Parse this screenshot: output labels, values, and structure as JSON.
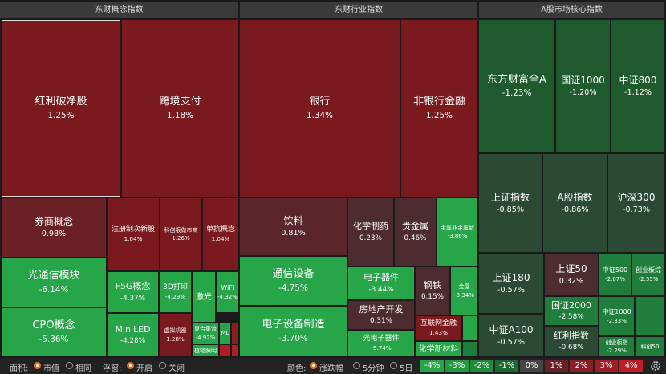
{
  "panels": [
    {
      "title": "东财概念指数",
      "tiles": [
        {
          "name": "红利破净股",
          "change": "1.25%"
        },
        {
          "name": "跨境支付",
          "change": "1.18%"
        },
        {
          "name": "券商概念",
          "change": "0.98%"
        },
        {
          "name": "注册制次新股",
          "change": "1.04%"
        },
        {
          "name": "科创板做市商",
          "change": "1.26%"
        },
        {
          "name": "单抗概念",
          "change": "1.04%"
        },
        {
          "name": "光通信模块",
          "change": "-6.14%"
        },
        {
          "name": "CPO概念",
          "change": "-5.36%"
        },
        {
          "name": "F5G概念",
          "change": "-4.37%"
        },
        {
          "name": "MiniLED",
          "change": "-4.28%"
        },
        {
          "name": "3D打印",
          "change": "-4.29%"
        },
        {
          "name": "激光"
        },
        {
          "name": "WiFi",
          "change": "-4.32%"
        },
        {
          "name": "虚拟机器",
          "change": "1.28%"
        },
        {
          "name": "复合集流",
          "change": "-4.92%"
        },
        {
          "name": "植物照明"
        },
        {
          "name": "ML"
        }
      ]
    },
    {
      "title": "东财行业指数",
      "tiles": [
        {
          "name": "银行",
          "change": "1.34%"
        },
        {
          "name": "非银行金融",
          "change": "1.25%"
        },
        {
          "name": "饮料",
          "change": "0.81%"
        },
        {
          "name": "化学制药",
          "change": "0.23%"
        },
        {
          "name": "贵金属",
          "change": "0.46%"
        },
        {
          "name": "金属非金属新",
          "change": "-3.86%"
        },
        {
          "name": "通信设备",
          "change": "-4.75%"
        },
        {
          "name": "电子设备制造",
          "change": "-3.70%"
        },
        {
          "name": "电子器件",
          "change": "-3.44%"
        },
        {
          "name": "钢铁",
          "change": "0.15%"
        },
        {
          "name": "金屋",
          "change": "-3.34%"
        },
        {
          "name": "房地产开发",
          "change": "0.31%"
        },
        {
          "name": "光电子器件",
          "change": "-5.74%"
        },
        {
          "name": "互联网金融",
          "change": "1.43%"
        },
        {
          "name": "化学新材料"
        }
      ]
    },
    {
      "title": "A股市场核心指数",
      "tiles": [
        {
          "name": "东方财富全A",
          "change": "-1.23%"
        },
        {
          "name": "国证1000",
          "change": "-1.20%"
        },
        {
          "name": "中证800",
          "change": "-1.12%"
        },
        {
          "name": "上证指数",
          "change": "-0.85%"
        },
        {
          "name": "A股指数",
          "change": "-0.86%"
        },
        {
          "name": "沪深300",
          "change": "-0.73%"
        },
        {
          "name": "上证180",
          "change": "-0.57%"
        },
        {
          "name": "上证50",
          "change": "0.32%"
        },
        {
          "name": "中证500",
          "change": "-2.07%"
        },
        {
          "name": "创业板综",
          "change": "-2.55%"
        },
        {
          "name": "国证2000",
          "change": "-2.58%"
        },
        {
          "name": "中证1000",
          "change": "-2.33%"
        },
        {
          "name": "中证A100",
          "change": "-0.57%"
        },
        {
          "name": "红利指数",
          "change": "-0.68%"
        },
        {
          "name": "创业板指",
          "change": "-2.29%"
        },
        {
          "name": "科创50"
        }
      ]
    }
  ],
  "footer": {
    "area_label": "面积:",
    "area_options": [
      "市值",
      "相同"
    ],
    "float_label": "浮窗:",
    "float_options": [
      "开启",
      "关闭"
    ],
    "color_label": "颜色:",
    "color_options": [
      "涨跌幅",
      "5分钟",
      "5日"
    ],
    "legend": [
      "-4%",
      "-3%",
      "-2%",
      "-1%",
      "0%",
      "1%",
      "2%",
      "3%",
      "4%"
    ]
  }
}
